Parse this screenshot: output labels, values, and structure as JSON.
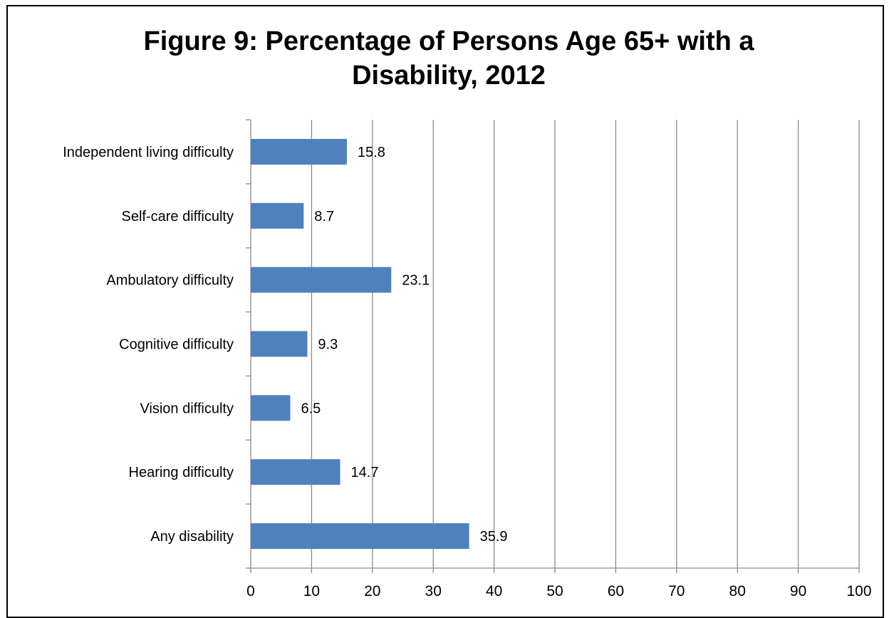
{
  "chart_data": {
    "type": "bar",
    "orientation": "horizontal",
    "title_lines": [
      "Figure 9: Percentage of Persons Age 65+ with a",
      "Disability, 2012"
    ],
    "categories": [
      "Independent living difficulty",
      "Self-care difficulty",
      "Ambulatory difficulty",
      "Cognitive difficulty",
      "Vision difficulty",
      "Hearing difficulty",
      "Any disability"
    ],
    "values": [
      15.8,
      8.7,
      23.1,
      9.3,
      6.5,
      14.7,
      35.9
    ],
    "data_labels": [
      "15.8",
      "8.7",
      "23.1",
      "9.3",
      "6.5",
      "14.7",
      "35.9"
    ],
    "xlim": [
      0,
      100
    ],
    "x_ticks": [
      0,
      10,
      20,
      30,
      40,
      50,
      60,
      70,
      80,
      90,
      100
    ],
    "grid": "vertical",
    "legend": "none",
    "bar_color": "#4F81BD"
  }
}
